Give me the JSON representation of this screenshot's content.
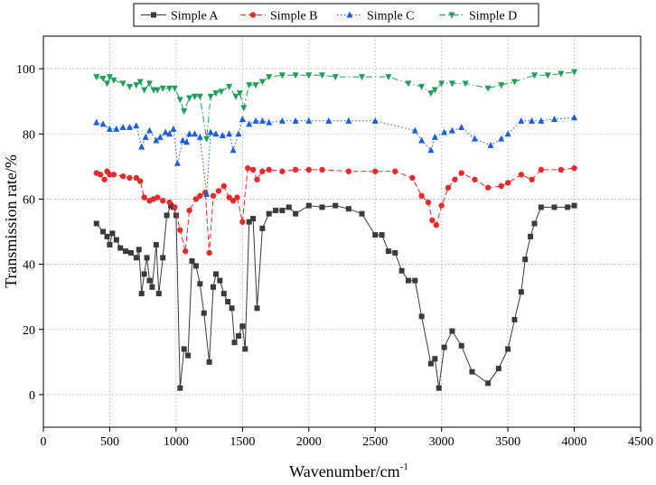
{
  "chart_data": {
    "type": "line",
    "title": "",
    "xlabel": "Wavenumber/cm",
    "xlabel_sup": "-1",
    "ylabel": "Transmission rate/%",
    "xlim": [
      0,
      4500
    ],
    "ylim": [
      -10,
      110
    ],
    "xticks": [
      0,
      500,
      1000,
      1500,
      2000,
      2500,
      3000,
      3500,
      4000,
      4500
    ],
    "yticks": [
      0,
      20,
      40,
      60,
      80,
      100
    ],
    "grid": true,
    "legend_position": "top",
    "series": [
      {
        "name": "Simple A",
        "color": "#3a3a3a",
        "marker": "square",
        "dash": "solid",
        "points": [
          [
            400,
            52.5
          ],
          [
            450,
            50
          ],
          [
            480,
            48.5
          ],
          [
            500,
            46
          ],
          [
            520,
            49.5
          ],
          [
            550,
            47.5
          ],
          [
            580,
            45
          ],
          [
            620,
            44
          ],
          [
            660,
            43.5
          ],
          [
            700,
            42
          ],
          [
            720,
            44.5
          ],
          [
            740,
            31
          ],
          [
            760,
            37
          ],
          [
            780,
            42
          ],
          [
            800,
            35
          ],
          [
            820,
            33
          ],
          [
            850,
            46
          ],
          [
            870,
            31
          ],
          [
            900,
            42
          ],
          [
            930,
            55
          ],
          [
            960,
            58
          ],
          [
            980,
            57.5
          ],
          [
            1000,
            55
          ],
          [
            1030,
            2
          ],
          [
            1060,
            14
          ],
          [
            1090,
            12
          ],
          [
            1120,
            41
          ],
          [
            1150,
            39.5
          ],
          [
            1180,
            34
          ],
          [
            1210,
            25
          ],
          [
            1250,
            10
          ],
          [
            1280,
            33
          ],
          [
            1300,
            37
          ],
          [
            1330,
            35
          ],
          [
            1360,
            31
          ],
          [
            1390,
            28.5
          ],
          [
            1420,
            26.5
          ],
          [
            1440,
            16
          ],
          [
            1470,
            18
          ],
          [
            1500,
            21
          ],
          [
            1520,
            14
          ],
          [
            1550,
            53
          ],
          [
            1580,
            54
          ],
          [
            1610,
            26.5
          ],
          [
            1650,
            51
          ],
          [
            1700,
            55.5
          ],
          [
            1750,
            56.5
          ],
          [
            1800,
            56.5
          ],
          [
            1850,
            57.5
          ],
          [
            1900,
            55.5
          ],
          [
            2000,
            58
          ],
          [
            2100,
            57.5
          ],
          [
            2200,
            58
          ],
          [
            2300,
            57
          ],
          [
            2400,
            55.5
          ],
          [
            2500,
            49
          ],
          [
            2550,
            49
          ],
          [
            2600,
            44
          ],
          [
            2650,
            43.5
          ],
          [
            2700,
            38
          ],
          [
            2750,
            35
          ],
          [
            2800,
            35
          ],
          [
            2850,
            24
          ],
          [
            2920,
            9.5
          ],
          [
            2950,
            11
          ],
          [
            2980,
            2
          ],
          [
            3020,
            14.5
          ],
          [
            3080,
            19.5
          ],
          [
            3150,
            15
          ],
          [
            3230,
            7
          ],
          [
            3350,
            3.5
          ],
          [
            3430,
            8
          ],
          [
            3500,
            14
          ],
          [
            3550,
            23
          ],
          [
            3600,
            31.5
          ],
          [
            3630,
            41.5
          ],
          [
            3670,
            48.5
          ],
          [
            3700,
            52.5
          ],
          [
            3750,
            57.5
          ],
          [
            3850,
            57.5
          ],
          [
            3950,
            57.5
          ],
          [
            4000,
            58
          ]
        ]
      },
      {
        "name": "Simple B",
        "color": "#e82a2a",
        "marker": "circle",
        "dash": "dashed",
        "points": [
          [
            400,
            68
          ],
          [
            430,
            67.5
          ],
          [
            460,
            66
          ],
          [
            480,
            68.5
          ],
          [
            500,
            67.5
          ],
          [
            530,
            67.5
          ],
          [
            600,
            67
          ],
          [
            650,
            66.5
          ],
          [
            700,
            66.5
          ],
          [
            730,
            65.5
          ],
          [
            760,
            60.5
          ],
          [
            800,
            59.5
          ],
          [
            830,
            60
          ],
          [
            860,
            60.5
          ],
          [
            900,
            59.5
          ],
          [
            950,
            59
          ],
          [
            990,
            57.5
          ],
          [
            1030,
            50.5
          ],
          [
            1070,
            44
          ],
          [
            1100,
            56.5
          ],
          [
            1150,
            60
          ],
          [
            1180,
            61
          ],
          [
            1220,
            62
          ],
          [
            1250,
            43.5
          ],
          [
            1280,
            61
          ],
          [
            1320,
            62.5
          ],
          [
            1360,
            64
          ],
          [
            1400,
            60.5
          ],
          [
            1430,
            59.5
          ],
          [
            1460,
            60.5
          ],
          [
            1500,
            53
          ],
          [
            1540,
            69.5
          ],
          [
            1580,
            69
          ],
          [
            1610,
            66
          ],
          [
            1650,
            68.5
          ],
          [
            1700,
            69
          ],
          [
            1800,
            68.5
          ],
          [
            1900,
            69
          ],
          [
            2000,
            69
          ],
          [
            2100,
            69
          ],
          [
            2300,
            68.5
          ],
          [
            2500,
            68.5
          ],
          [
            2650,
            68.5
          ],
          [
            2780,
            66.5
          ],
          [
            2850,
            61
          ],
          [
            2900,
            59
          ],
          [
            2930,
            53.5
          ],
          [
            2960,
            52
          ],
          [
            3000,
            58
          ],
          [
            3050,
            63.5
          ],
          [
            3100,
            66
          ],
          [
            3150,
            68
          ],
          [
            3250,
            66
          ],
          [
            3350,
            63.5
          ],
          [
            3450,
            64
          ],
          [
            3500,
            65
          ],
          [
            3600,
            67.5
          ],
          [
            3680,
            66
          ],
          [
            3750,
            69
          ],
          [
            3900,
            69
          ],
          [
            4000,
            69.5
          ]
        ]
      },
      {
        "name": "Simple C",
        "color": "#1a5fe0",
        "marker": "triangle-up",
        "dash": "dotted",
        "points": [
          [
            400,
            83.5
          ],
          [
            450,
            83
          ],
          [
            500,
            81.5
          ],
          [
            550,
            81.5
          ],
          [
            600,
            82
          ],
          [
            650,
            82
          ],
          [
            700,
            82.5
          ],
          [
            740,
            76
          ],
          [
            770,
            79
          ],
          [
            800,
            81
          ],
          [
            850,
            78
          ],
          [
            880,
            79
          ],
          [
            920,
            80.5
          ],
          [
            950,
            80
          ],
          [
            980,
            81.5
          ],
          [
            1010,
            71
          ],
          [
            1050,
            78
          ],
          [
            1080,
            77.5
          ],
          [
            1100,
            80
          ],
          [
            1140,
            80
          ],
          [
            1180,
            79
          ],
          [
            1230,
            61.5
          ],
          [
            1260,
            80.5
          ],
          [
            1300,
            80
          ],
          [
            1350,
            79.5
          ],
          [
            1400,
            80
          ],
          [
            1430,
            75
          ],
          [
            1470,
            80
          ],
          [
            1500,
            84.5
          ],
          [
            1550,
            83
          ],
          [
            1600,
            84
          ],
          [
            1650,
            84
          ],
          [
            1700,
            83.5
          ],
          [
            1800,
            84
          ],
          [
            1900,
            84
          ],
          [
            2000,
            84
          ],
          [
            2150,
            84
          ],
          [
            2300,
            84
          ],
          [
            2500,
            84
          ],
          [
            2800,
            81
          ],
          [
            2850,
            78
          ],
          [
            2920,
            75
          ],
          [
            2950,
            79
          ],
          [
            3020,
            80.5
          ],
          [
            3080,
            81
          ],
          [
            3150,
            82
          ],
          [
            3250,
            78.5
          ],
          [
            3370,
            76.5
          ],
          [
            3450,
            78.5
          ],
          [
            3500,
            80
          ],
          [
            3600,
            84
          ],
          [
            3680,
            84
          ],
          [
            3750,
            84
          ],
          [
            3850,
            84.5
          ],
          [
            4000,
            85
          ]
        ]
      },
      {
        "name": "Simple D",
        "color": "#1f9e5a",
        "marker": "triangle-down",
        "dash": "dashdot",
        "points": [
          [
            400,
            97.5
          ],
          [
            450,
            97
          ],
          [
            480,
            95.5
          ],
          [
            500,
            97.5
          ],
          [
            530,
            96.5
          ],
          [
            600,
            95.5
          ],
          [
            650,
            94.5
          ],
          [
            700,
            95
          ],
          [
            730,
            96
          ],
          [
            760,
            93.5
          ],
          [
            800,
            95.5
          ],
          [
            830,
            93.5
          ],
          [
            860,
            93.5
          ],
          [
            900,
            94
          ],
          [
            950,
            94
          ],
          [
            990,
            94
          ],
          [
            1030,
            90.5
          ],
          [
            1060,
            87
          ],
          [
            1100,
            91
          ],
          [
            1140,
            91.5
          ],
          [
            1180,
            91.5
          ],
          [
            1230,
            78.5
          ],
          [
            1260,
            91.5
          ],
          [
            1300,
            92.5
          ],
          [
            1340,
            93
          ],
          [
            1400,
            94.5
          ],
          [
            1450,
            91.5
          ],
          [
            1480,
            92.5
          ],
          [
            1510,
            88
          ],
          [
            1550,
            95
          ],
          [
            1600,
            95
          ],
          [
            1650,
            96
          ],
          [
            1700,
            97.5
          ],
          [
            1800,
            98
          ],
          [
            1900,
            98
          ],
          [
            2000,
            98
          ],
          [
            2100,
            98
          ],
          [
            2200,
            97.5
          ],
          [
            2400,
            97.5
          ],
          [
            2600,
            97.5
          ],
          [
            2750,
            95.5
          ],
          [
            2850,
            94.5
          ],
          [
            2920,
            92.5
          ],
          [
            2950,
            93.5
          ],
          [
            3000,
            95.5
          ],
          [
            3080,
            95.5
          ],
          [
            3180,
            95.5
          ],
          [
            3350,
            94
          ],
          [
            3450,
            95
          ],
          [
            3550,
            96
          ],
          [
            3700,
            98
          ],
          [
            3800,
            98
          ],
          [
            3900,
            98.5
          ],
          [
            4000,
            99
          ]
        ]
      }
    ]
  }
}
